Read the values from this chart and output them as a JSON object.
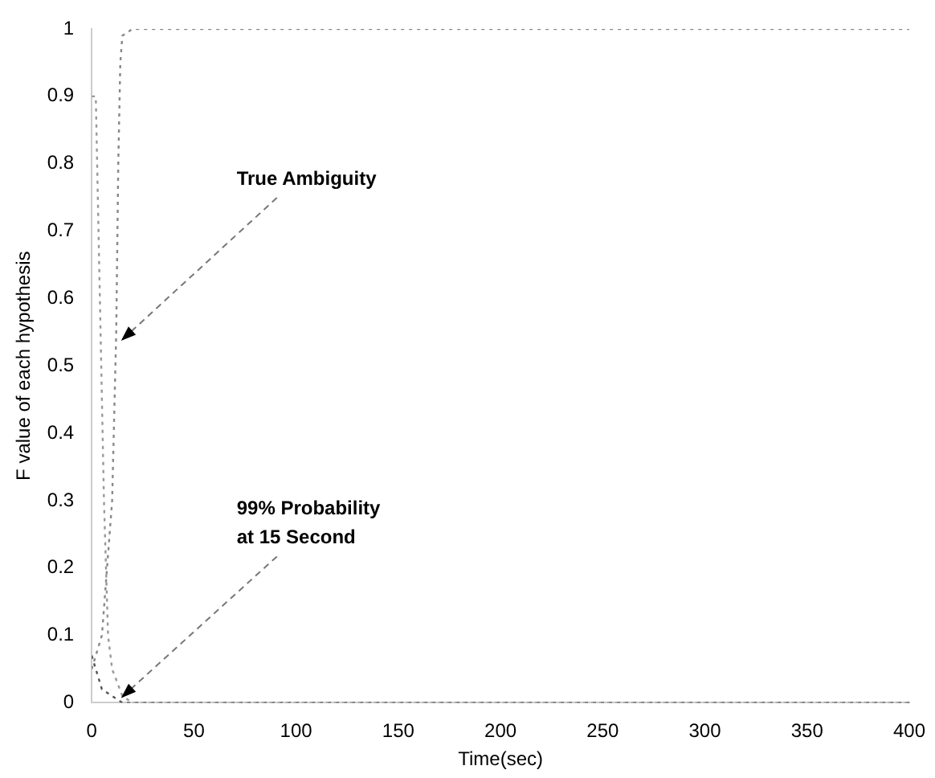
{
  "chart_data": {
    "type": "line",
    "xlabel": "Time(sec)",
    "ylabel": "F value of each hypothesis",
    "xlim": [
      0,
      400
    ],
    "xticks": [
      0,
      50,
      100,
      150,
      200,
      250,
      300,
      350,
      400
    ],
    "ylim": [
      0,
      1
    ],
    "yticks": [
      0,
      0.1,
      0.2,
      0.3,
      0.4,
      0.5,
      0.6,
      0.7,
      0.8,
      0.9,
      1
    ],
    "grid": false,
    "legend": false,
    "marker": "none",
    "line_style": "dotted",
    "series": [
      {
        "color": "#888888",
        "x": [
          0,
          5,
          10,
          12,
          13,
          14,
          15,
          20,
          50,
          100,
          200,
          300,
          400
        ],
        "values": [
          0.05,
          0.1,
          0.3,
          0.55,
          0.8,
          0.95,
          0.99,
          1,
          1,
          1,
          1,
          1,
          1
        ]
      },
      {
        "color": "#999999",
        "x": [
          0,
          2,
          4,
          6,
          8,
          10,
          15,
          20,
          50,
          400
        ],
        "values": [
          0.9,
          0.9,
          0.6,
          0.3,
          0.1,
          0.05,
          0.01,
          0,
          0,
          0
        ]
      },
      {
        "color": "#555555",
        "x": [
          0,
          2,
          5,
          10,
          15,
          400
        ],
        "values": [
          0.07,
          0.05,
          0.02,
          0.01,
          0,
          0
        ]
      }
    ],
    "annotations": [
      {
        "text": "True Ambiguity",
        "x": 12,
        "y": 0.53
      },
      {
        "text": "99% Probability\nat 15 Second",
        "x": 12,
        "y": 0
      }
    ]
  }
}
